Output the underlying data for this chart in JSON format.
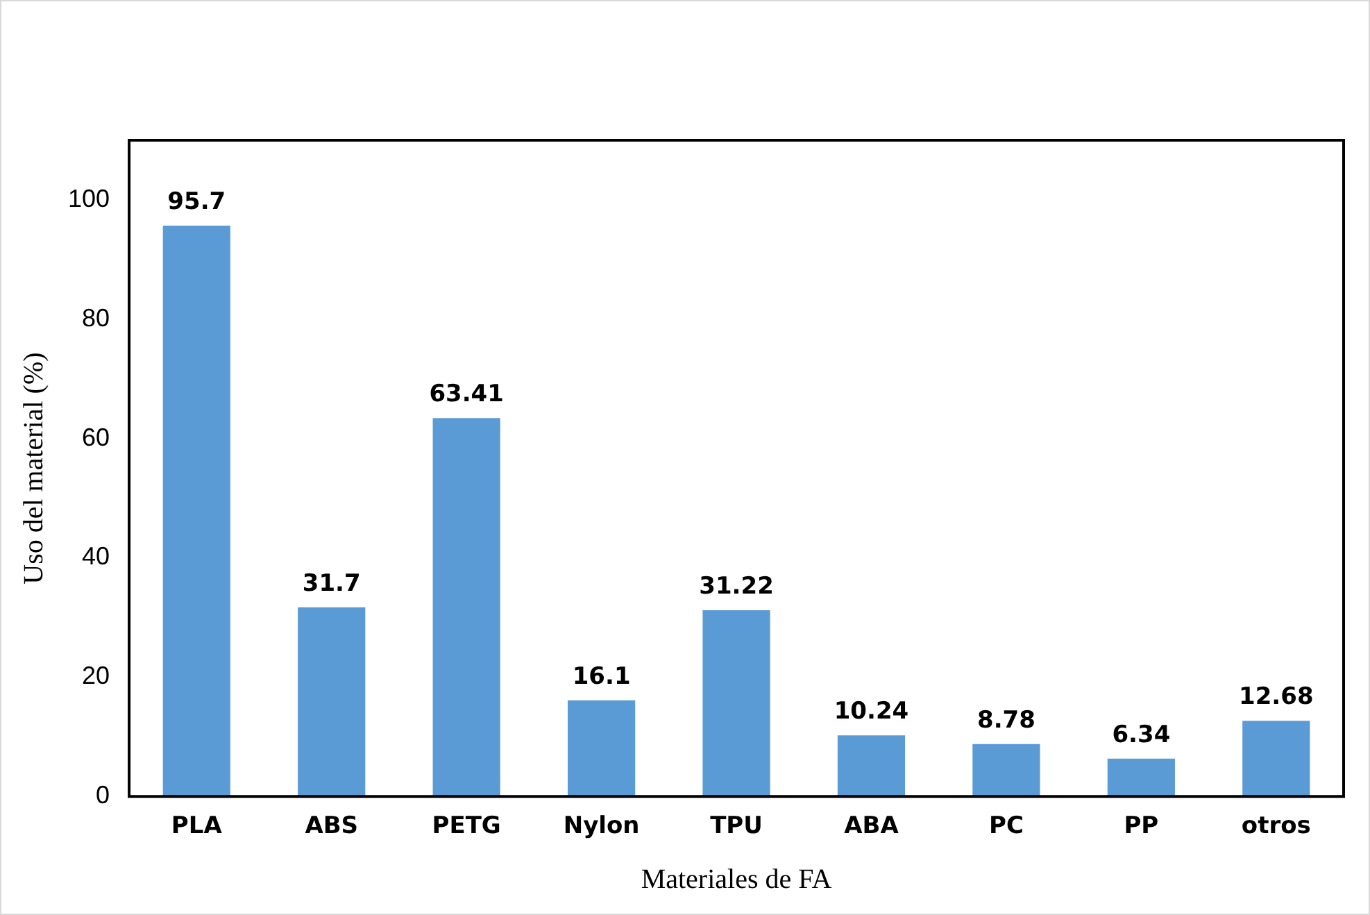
{
  "chart_data": {
    "type": "bar",
    "xlabel": "Materiales de FA",
    "ylabel": "Uso del material (%)",
    "categories": [
      "PLA",
      "ABS",
      "PETG",
      "Nylon",
      "TPU",
      "ABA",
      "PC",
      "PP",
      "otros"
    ],
    "values": [
      95.7,
      31.7,
      63.41,
      16.1,
      31.22,
      10.24,
      8.78,
      6.34,
      12.68
    ],
    "color": "#5b9bd5",
    "ylim": [
      0,
      110
    ],
    "yticks": [
      0,
      20,
      40,
      60,
      80,
      100
    ],
    "data_labels": true,
    "grid": false,
    "legend": false
  }
}
